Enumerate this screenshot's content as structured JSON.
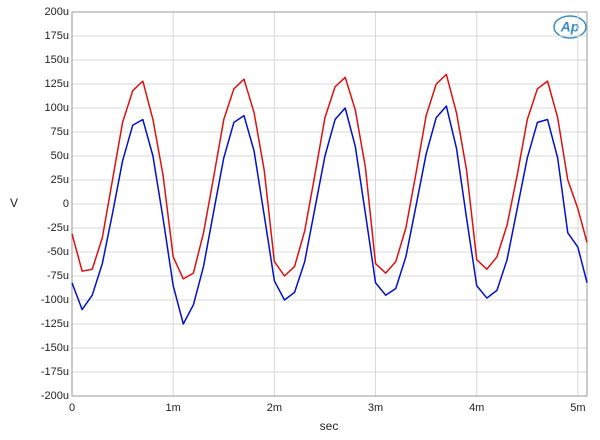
{
  "chart_data": {
    "type": "line",
    "logo": "Ap",
    "xlabel": "sec",
    "ylabel": "V",
    "x": [
      0,
      0.0001,
      0.0002,
      0.0003,
      0.0004,
      0.0005,
      0.0006,
      0.0007,
      0.0008,
      0.0009,
      0.001,
      0.0011,
      0.0012,
      0.0013,
      0.0014,
      0.0015,
      0.0016,
      0.0017,
      0.0018,
      0.0019,
      0.002,
      0.0021,
      0.0022,
      0.0023,
      0.0024,
      0.0025,
      0.0026,
      0.0027,
      0.0028,
      0.0029,
      0.003,
      0.0031,
      0.0032,
      0.0033,
      0.0034,
      0.0035,
      0.0036,
      0.0037,
      0.0038,
      0.0039,
      0.004,
      0.0041,
      0.0042,
      0.0043,
      0.0044,
      0.0045,
      0.0046,
      0.0047,
      0.0048,
      0.0049,
      0.005,
      0.00509
    ],
    "series": [
      {
        "color": "#e01010",
        "values": [
          -3.1e-05,
          -7e-05,
          -6.8e-05,
          -3.5e-05,
          2.5e-05,
          8.5e-05,
          0.000118,
          0.000128,
          8.8e-05,
          3e-05,
          -5.5e-05,
          -7.8e-05,
          -7.2e-05,
          -3e-05,
          2.8e-05,
          8.8e-05,
          0.00012,
          0.00013,
          9.5e-05,
          3.5e-05,
          -6e-05,
          -7.5e-05,
          -6.5e-05,
          -2.8e-05,
          3e-05,
          9e-05,
          0.000122,
          0.000132,
          9.8e-05,
          3.8e-05,
          -6.2e-05,
          -7.2e-05,
          -6e-05,
          -2.5e-05,
          3.2e-05,
          9.2e-05,
          0.000125,
          0.000135,
          9.5e-05,
          3.5e-05,
          -5.8e-05,
          -6.8e-05,
          -5.5e-05,
          -2.2e-05,
          3e-05,
          8.8e-05,
          0.00012,
          0.000128,
          9e-05,
          2.5e-05,
          -5e-06,
          -4e-05
        ]
      },
      {
        "color": "#0010d0",
        "values": [
          -8.2e-05,
          -0.00011,
          -9.5e-05,
          -6.2e-05,
          -1e-05,
          4.5e-05,
          8.2e-05,
          8.8e-05,
          5e-05,
          -1.5e-05,
          -8.5e-05,
          -0.000125,
          -0.000105,
          -6.5e-05,
          -8e-06,
          4.8e-05,
          8.5e-05,
          9.2e-05,
          5.5e-05,
          -1.2e-05,
          -8e-05,
          -0.0001,
          -9.2e-05,
          -6e-05,
          -5e-06,
          5e-05,
          8.8e-05,
          0.0001,
          6e-05,
          -1e-05,
          -8.2e-05,
          -9.5e-05,
          -8.8e-05,
          -5.5e-05,
          -2e-06,
          5.2e-05,
          9e-05,
          0.000102,
          5.8e-05,
          -1.5e-05,
          -8.5e-05,
          -9.8e-05,
          -9e-05,
          -5.8e-05,
          -5e-06,
          4.8e-05,
          8.5e-05,
          8.8e-05,
          4.8e-05,
          -3e-05,
          -4.5e-05,
          -8.2e-05
        ]
      }
    ],
    "xlim": [
      0,
      0.00509
    ],
    "xticks": [
      0,
      {
        "value": 0.001,
        "label": "1m"
      },
      {
        "value": 0.002,
        "label": "2m"
      },
      {
        "value": 0.003,
        "label": "3m"
      },
      {
        "value": 0.004,
        "label": "4m"
      },
      {
        "value": 0.005,
        "label": "5m"
      }
    ],
    "ylim": [
      -0.0002,
      0.0002
    ],
    "yticks": [
      {
        "value": 0.0002,
        "label": "200u"
      },
      {
        "value": 0.000175,
        "label": "175u"
      },
      {
        "value": 0.00015,
        "label": "150u"
      },
      {
        "value": 0.000125,
        "label": "125u"
      },
      {
        "value": 0.0001,
        "label": "100u"
      },
      {
        "value": 7.5e-05,
        "label": "75u"
      },
      {
        "value": 5e-05,
        "label": "50u"
      },
      {
        "value": 2.5e-05,
        "label": "25u"
      },
      0,
      {
        "value": -2.5e-05,
        "label": "-25u"
      },
      {
        "value": -5e-05,
        "label": "-50u"
      },
      {
        "value": -7.5e-05,
        "label": "-75u"
      },
      {
        "value": -0.0001,
        "label": "-100u"
      },
      {
        "value": -0.000125,
        "label": "-125u"
      },
      {
        "value": -0.00015,
        "label": "-150u"
      },
      {
        "value": -0.000175,
        "label": "-175u"
      },
      {
        "value": -0.0002,
        "label": "-200u"
      }
    ],
    "grid": true
  }
}
